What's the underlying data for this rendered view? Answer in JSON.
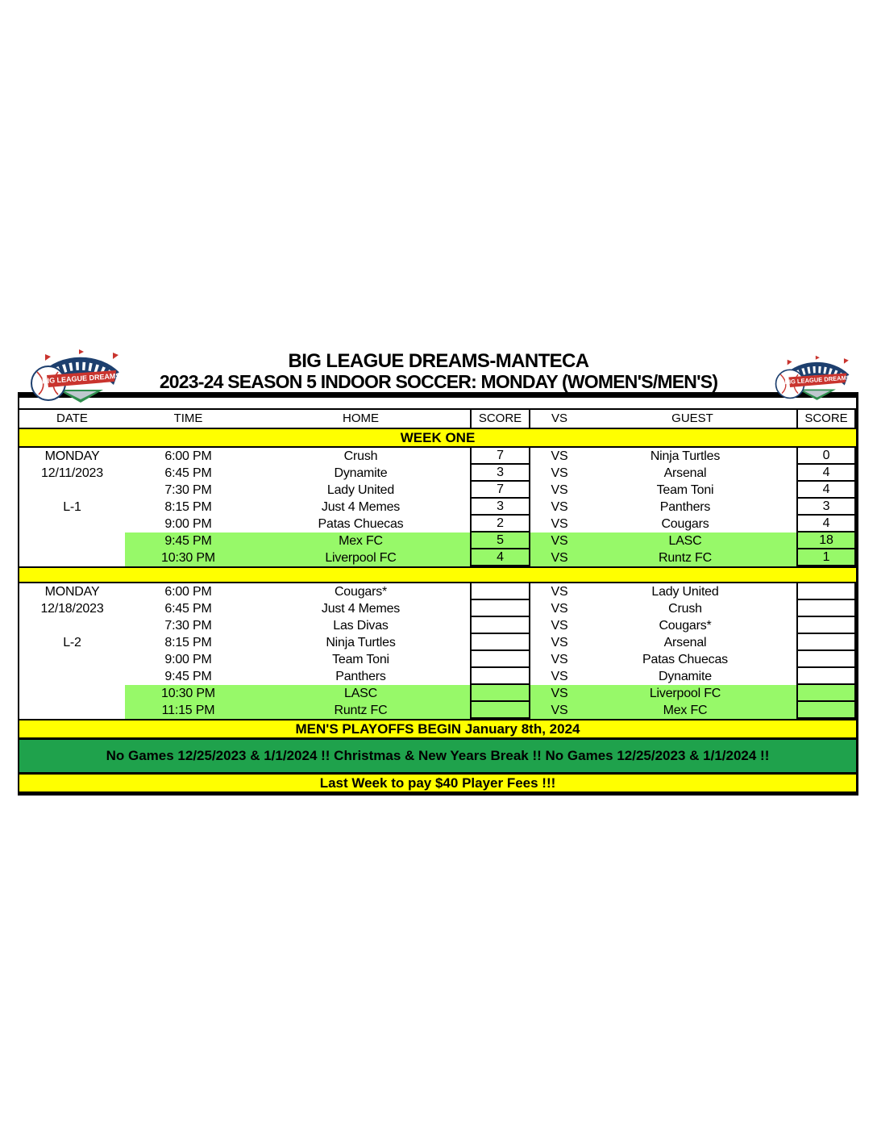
{
  "header": {
    "title": "BIG LEAGUE DREAMS-MANTECA",
    "subtitle": "2023-24 SEASON 5 INDOOR SOCCER: MONDAY (WOMEN'S/MEN'S)",
    "logo_text": "BIG LEAGUE DREAMS"
  },
  "table": {
    "columns": [
      "DATE",
      "TIME",
      "HOME",
      "SCORE",
      "VS",
      "GUEST",
      "SCORE"
    ],
    "week_banner": "WEEK ONE",
    "vs_label": "VS",
    "blocks": [
      {
        "day": "MONDAY",
        "date": "12/11/2023",
        "league": "L-1",
        "games": [
          {
            "time": "6:00 PM",
            "home": "Crush",
            "home_score": "7",
            "guest": "Ninja Turtles",
            "guest_score": "0",
            "highlight": false
          },
          {
            "time": "6:45 PM",
            "home": "Dynamite",
            "home_score": "3",
            "guest": "Arsenal",
            "guest_score": "4",
            "highlight": false
          },
          {
            "time": "7:30 PM",
            "home": "Lady United",
            "home_score": "7",
            "guest": "Team Toni",
            "guest_score": "4",
            "highlight": false
          },
          {
            "time": "8:15 PM",
            "home": "Just 4 Memes",
            "home_score": "3",
            "guest": "Panthers",
            "guest_score": "3",
            "highlight": false
          },
          {
            "time": "9:00 PM",
            "home": "Patas Chuecas",
            "home_score": "2",
            "guest": "Cougars",
            "guest_score": "4",
            "highlight": false
          },
          {
            "time": "9:45 PM",
            "home": "Mex FC",
            "home_score": "5",
            "guest": "LASC",
            "guest_score": "18",
            "highlight": true
          },
          {
            "time": "10:30 PM",
            "home": "Liverpool FC",
            "home_score": "4",
            "guest": "Runtz FC",
            "guest_score": "1",
            "highlight": true
          }
        ]
      },
      {
        "day": "MONDAY",
        "date": "12/18/2023",
        "league": "L-2",
        "games": [
          {
            "time": "6:00 PM",
            "home": "Cougars*",
            "home_score": "",
            "guest": "Lady United",
            "guest_score": "",
            "highlight": false
          },
          {
            "time": "6:45 PM",
            "home": "Just 4 Memes",
            "home_score": "",
            "guest": "Crush",
            "guest_score": "",
            "highlight": false
          },
          {
            "time": "7:30 PM",
            "home": "Las Divas",
            "home_score": "",
            "guest": "Cougars*",
            "guest_score": "",
            "highlight": false
          },
          {
            "time": "8:15 PM",
            "home": "Ninja Turtles",
            "home_score": "",
            "guest": "Arsenal",
            "guest_score": "",
            "highlight": false
          },
          {
            "time": "9:00 PM",
            "home": "Team Toni",
            "home_score": "",
            "guest": "Patas Chuecas",
            "guest_score": "",
            "highlight": false
          },
          {
            "time": "9:45 PM",
            "home": "Panthers",
            "home_score": "",
            "guest": "Dynamite",
            "guest_score": "",
            "highlight": false
          },
          {
            "time": "10:30 PM",
            "home": "LASC",
            "home_score": "",
            "guest": "Liverpool FC",
            "guest_score": "",
            "highlight": true
          },
          {
            "time": "11:15 PM",
            "home": "Runtz FC",
            "home_score": "",
            "guest": "Mex FC",
            "guest_score": "",
            "highlight": true
          }
        ]
      }
    ],
    "banners": [
      {
        "text": "MEN'S PLAYOFFS BEGIN January 8th, 2024",
        "style": "yellow"
      },
      {
        "text": "No Games 12/25/2023 & 1/1/2024 !! Christmas & New Years Break !! No Games 12/25/2023 & 1/1/2024 !!",
        "style": "green"
      },
      {
        "text": "Last Week to pay $40 Player Fees !!!",
        "style": "yellow"
      }
    ]
  },
  "colors": {
    "highlight_green": "#97F969",
    "banner_green": "#1FA24C",
    "banner_yellow": "#FFFF00"
  }
}
